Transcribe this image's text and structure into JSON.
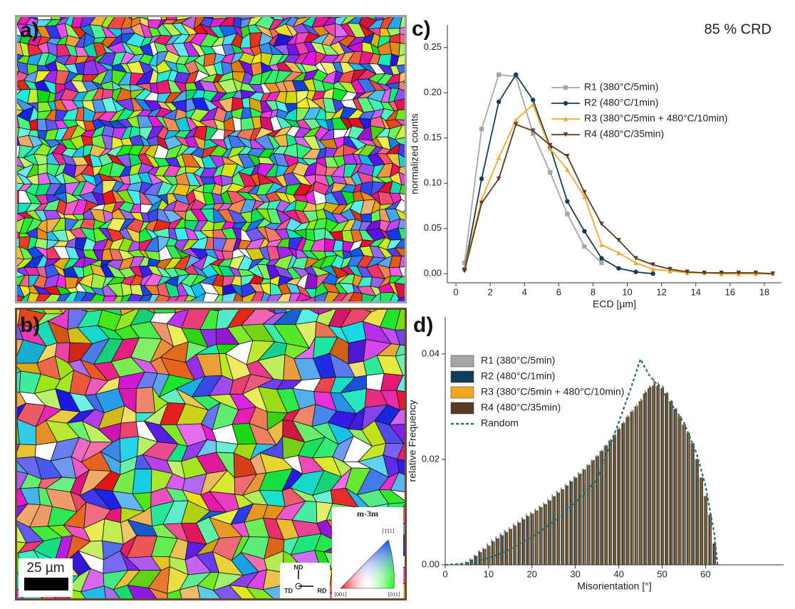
{
  "panels": {
    "a": "a)",
    "b": "b)",
    "scale_bar": "25 µm",
    "ipf_title": "m-3m",
    "ipf_corners": [
      "[001]",
      "[011]",
      "[1̄11]"
    ],
    "triad": [
      "ND",
      "TD",
      "RD"
    ]
  },
  "chart_data": [
    {
      "type": "line",
      "label": "c)",
      "annotation": "85 % CRD",
      "xlabel": "ECD [µm]",
      "ylabel": "normalized counts",
      "x": [
        0.5,
        1.5,
        2.5,
        3.5,
        4.5,
        5.5,
        6.5,
        7.5,
        8.5,
        9.5,
        10.5,
        11.5,
        12.5,
        13.5,
        14.5,
        15.5,
        16.5,
        17.5,
        18.5
      ],
      "xlim": [
        -0.5,
        19
      ],
      "xticks": [
        0,
        2,
        4,
        6,
        8,
        10,
        12,
        14,
        16,
        18
      ],
      "ylim": [
        -0.01,
        0.275
      ],
      "yticks": [
        {
          "value": 0,
          "label": "0.00"
        },
        0.05,
        {
          "value": 0.1,
          "label": "0.10"
        },
        0.15,
        {
          "value": 0.2,
          "label": "0.20"
        },
        0.25
      ],
      "series": [
        {
          "name": "R1 (380°C/5min)",
          "color": "#a6a6a6",
          "marker": "square",
          "values": [
            0.012,
            0.16,
            0.22,
            0.218,
            0.155,
            0.112,
            0.066,
            0.03,
            0.012,
            null,
            null,
            null,
            null,
            null,
            null,
            null,
            null,
            null,
            null
          ]
        },
        {
          "name": "R2 (480°C/1min)",
          "color": "#0f3d5a",
          "marker": "circle",
          "values": [
            0.005,
            0.105,
            0.19,
            0.22,
            0.192,
            0.14,
            0.08,
            0.047,
            0.017,
            0.006,
            0.002,
            0,
            null,
            null,
            null,
            null,
            null,
            null,
            null
          ]
        },
        {
          "name": "R3 (380°C/5min + 480°C/10min)",
          "color": "#f5a623",
          "marker": "triangle-up",
          "values": [
            0.005,
            0.082,
            0.128,
            0.17,
            0.187,
            0.138,
            0.115,
            0.085,
            0.032,
            0.023,
            0.012,
            0.005,
            0.003,
            0.001,
            0.001,
            0,
            0,
            0,
            0
          ]
        },
        {
          "name": "R4 (480°C/35min)",
          "color": "#5a3a22",
          "marker": "triangle-down",
          "values": [
            0.003,
            0.078,
            0.105,
            0.165,
            0.158,
            0.142,
            0.13,
            0.09,
            0.055,
            0.037,
            0.017,
            0.01,
            0.005,
            0.002,
            0.001,
            0.001,
            0.001,
            0.001,
            0
          ]
        }
      ]
    },
    {
      "type": "bar",
      "label": "d)",
      "xlabel": "Misorientation [°]",
      "ylabel": "relative Frequency",
      "x": [
        5,
        6,
        7,
        8,
        9,
        10,
        11,
        12,
        13,
        14,
        15,
        16,
        17,
        18,
        19,
        20,
        21,
        22,
        23,
        24,
        25,
        26,
        27,
        28,
        29,
        30,
        31,
        32,
        33,
        34,
        35,
        36,
        37,
        38,
        39,
        40,
        41,
        42,
        43,
        44,
        45,
        46,
        47,
        48,
        49,
        50,
        51,
        52,
        53,
        54,
        55,
        56,
        57,
        58,
        59,
        60,
        61,
        62
      ],
      "xlim": [
        0,
        78
      ],
      "xticks": [
        0,
        10,
        20,
        30,
        40,
        50,
        60
      ],
      "ylim": [
        0,
        0.047
      ],
      "yticks": [
        {
          "value": 0,
          "label": "0.00"
        },
        {
          "value": 0.02,
          "label": "0.02"
        },
        {
          "value": 0.04,
          "label": "0.04"
        }
      ],
      "series": [
        {
          "name": "R1 (380°C/5min)",
          "color": "#a6a6a6",
          "values": [
            0.0006,
            0.0012,
            0.0019,
            0.0027,
            0.0032,
            0.004,
            0.0048,
            0.0053,
            0.006,
            0.0066,
            0.0071,
            0.0078,
            0.0083,
            0.009,
            0.0096,
            0.01,
            0.0106,
            0.0112,
            0.0118,
            0.0125,
            0.0133,
            0.014,
            0.0146,
            0.0153,
            0.016,
            0.0168,
            0.0175,
            0.0182,
            0.019,
            0.0199,
            0.0207,
            0.0216,
            0.0226,
            0.0236,
            0.0246,
            0.0258,
            0.0268,
            0.028,
            0.029,
            0.03,
            0.031,
            0.0324,
            0.0333,
            0.0338,
            0.0338,
            0.0334,
            0.0323,
            0.0308,
            0.0295,
            0.0282,
            0.0266,
            0.025,
            0.023,
            0.02,
            0.0165,
            0.013,
            0.0095,
            0.004
          ]
        },
        {
          "name": "R2 (480°C/1min)",
          "color": "#0f3d5a",
          "values": [
            0.0005,
            0.001,
            0.0017,
            0.0025,
            0.003,
            0.0037,
            0.0045,
            0.005,
            0.0057,
            0.0063,
            0.0068,
            0.0075,
            0.008,
            0.0087,
            0.0093,
            0.0097,
            0.0103,
            0.011,
            0.0115,
            0.0122,
            0.013,
            0.0137,
            0.0143,
            0.015,
            0.0158,
            0.0165,
            0.0172,
            0.018,
            0.0188,
            0.0197,
            0.0205,
            0.0215,
            0.0225,
            0.0235,
            0.0245,
            0.0257,
            0.0268,
            0.028,
            0.029,
            0.03,
            0.031,
            0.0325,
            0.0335,
            0.034,
            0.034,
            0.0335,
            0.0325,
            0.031,
            0.0295,
            0.028,
            0.0265,
            0.025,
            0.023,
            0.02,
            0.0165,
            0.013,
            0.0095,
            0.004
          ]
        },
        {
          "name": "R3 (380°C/5min + 480°C/10min)",
          "color": "#f5a623",
          "values": [
            0.0004,
            0.0009,
            0.0016,
            0.0023,
            0.0029,
            0.0035,
            0.0043,
            0.0049,
            0.0055,
            0.0061,
            0.0067,
            0.0073,
            0.0079,
            0.0085,
            0.0091,
            0.0096,
            0.0102,
            0.0108,
            0.0114,
            0.0121,
            0.0129,
            0.0136,
            0.0143,
            0.015,
            0.0158,
            0.0166,
            0.0173,
            0.0181,
            0.019,
            0.0199,
            0.0208,
            0.0218,
            0.0228,
            0.0238,
            0.0249,
            0.0261,
            0.0272,
            0.0284,
            0.0294,
            0.0304,
            0.0315,
            0.033,
            0.034,
            0.0352,
            0.0346,
            0.034,
            0.0328,
            0.0312,
            0.0297,
            0.0282,
            0.0267,
            0.0251,
            0.0231,
            0.0201,
            0.0166,
            0.0131,
            0.0096,
            0.0045
          ]
        },
        {
          "name": "R4 (480°C/35min)",
          "color": "#5a3a22",
          "values": [
            0.0005,
            0.001,
            0.0017,
            0.0024,
            0.003,
            0.0036,
            0.0044,
            0.005,
            0.0056,
            0.0062,
            0.0068,
            0.0074,
            0.008,
            0.0086,
            0.0092,
            0.0097,
            0.0103,
            0.0109,
            0.0115,
            0.0122,
            0.013,
            0.0137,
            0.0143,
            0.015,
            0.0158,
            0.0165,
            0.0173,
            0.0181,
            0.0189,
            0.0198,
            0.0206,
            0.0216,
            0.0226,
            0.0236,
            0.0246,
            0.0258,
            0.0269,
            0.0281,
            0.0291,
            0.0301,
            0.0312,
            0.0327,
            0.0337,
            0.0343,
            0.0342,
            0.0337,
            0.0326,
            0.0311,
            0.0296,
            0.0281,
            0.0266,
            0.025,
            0.023,
            0.02,
            0.0165,
            0.013,
            0.0095,
            0.004
          ]
        },
        {
          "name": "Random",
          "color": "#1f6b85",
          "type": "line",
          "dash": true,
          "x": [
            0,
            5,
            10,
            15,
            20,
            25,
            30,
            35,
            40,
            43,
            45,
            47,
            50,
            55,
            58,
            60,
            62,
            62.8
          ],
          "values": [
            0,
            0.0003,
            0.0013,
            0.0029,
            0.0052,
            0.0082,
            0.0118,
            0.0162,
            0.027,
            0.034,
            0.039,
            0.036,
            0.033,
            0.027,
            0.021,
            0.015,
            0.006,
            0
          ]
        }
      ]
    }
  ]
}
